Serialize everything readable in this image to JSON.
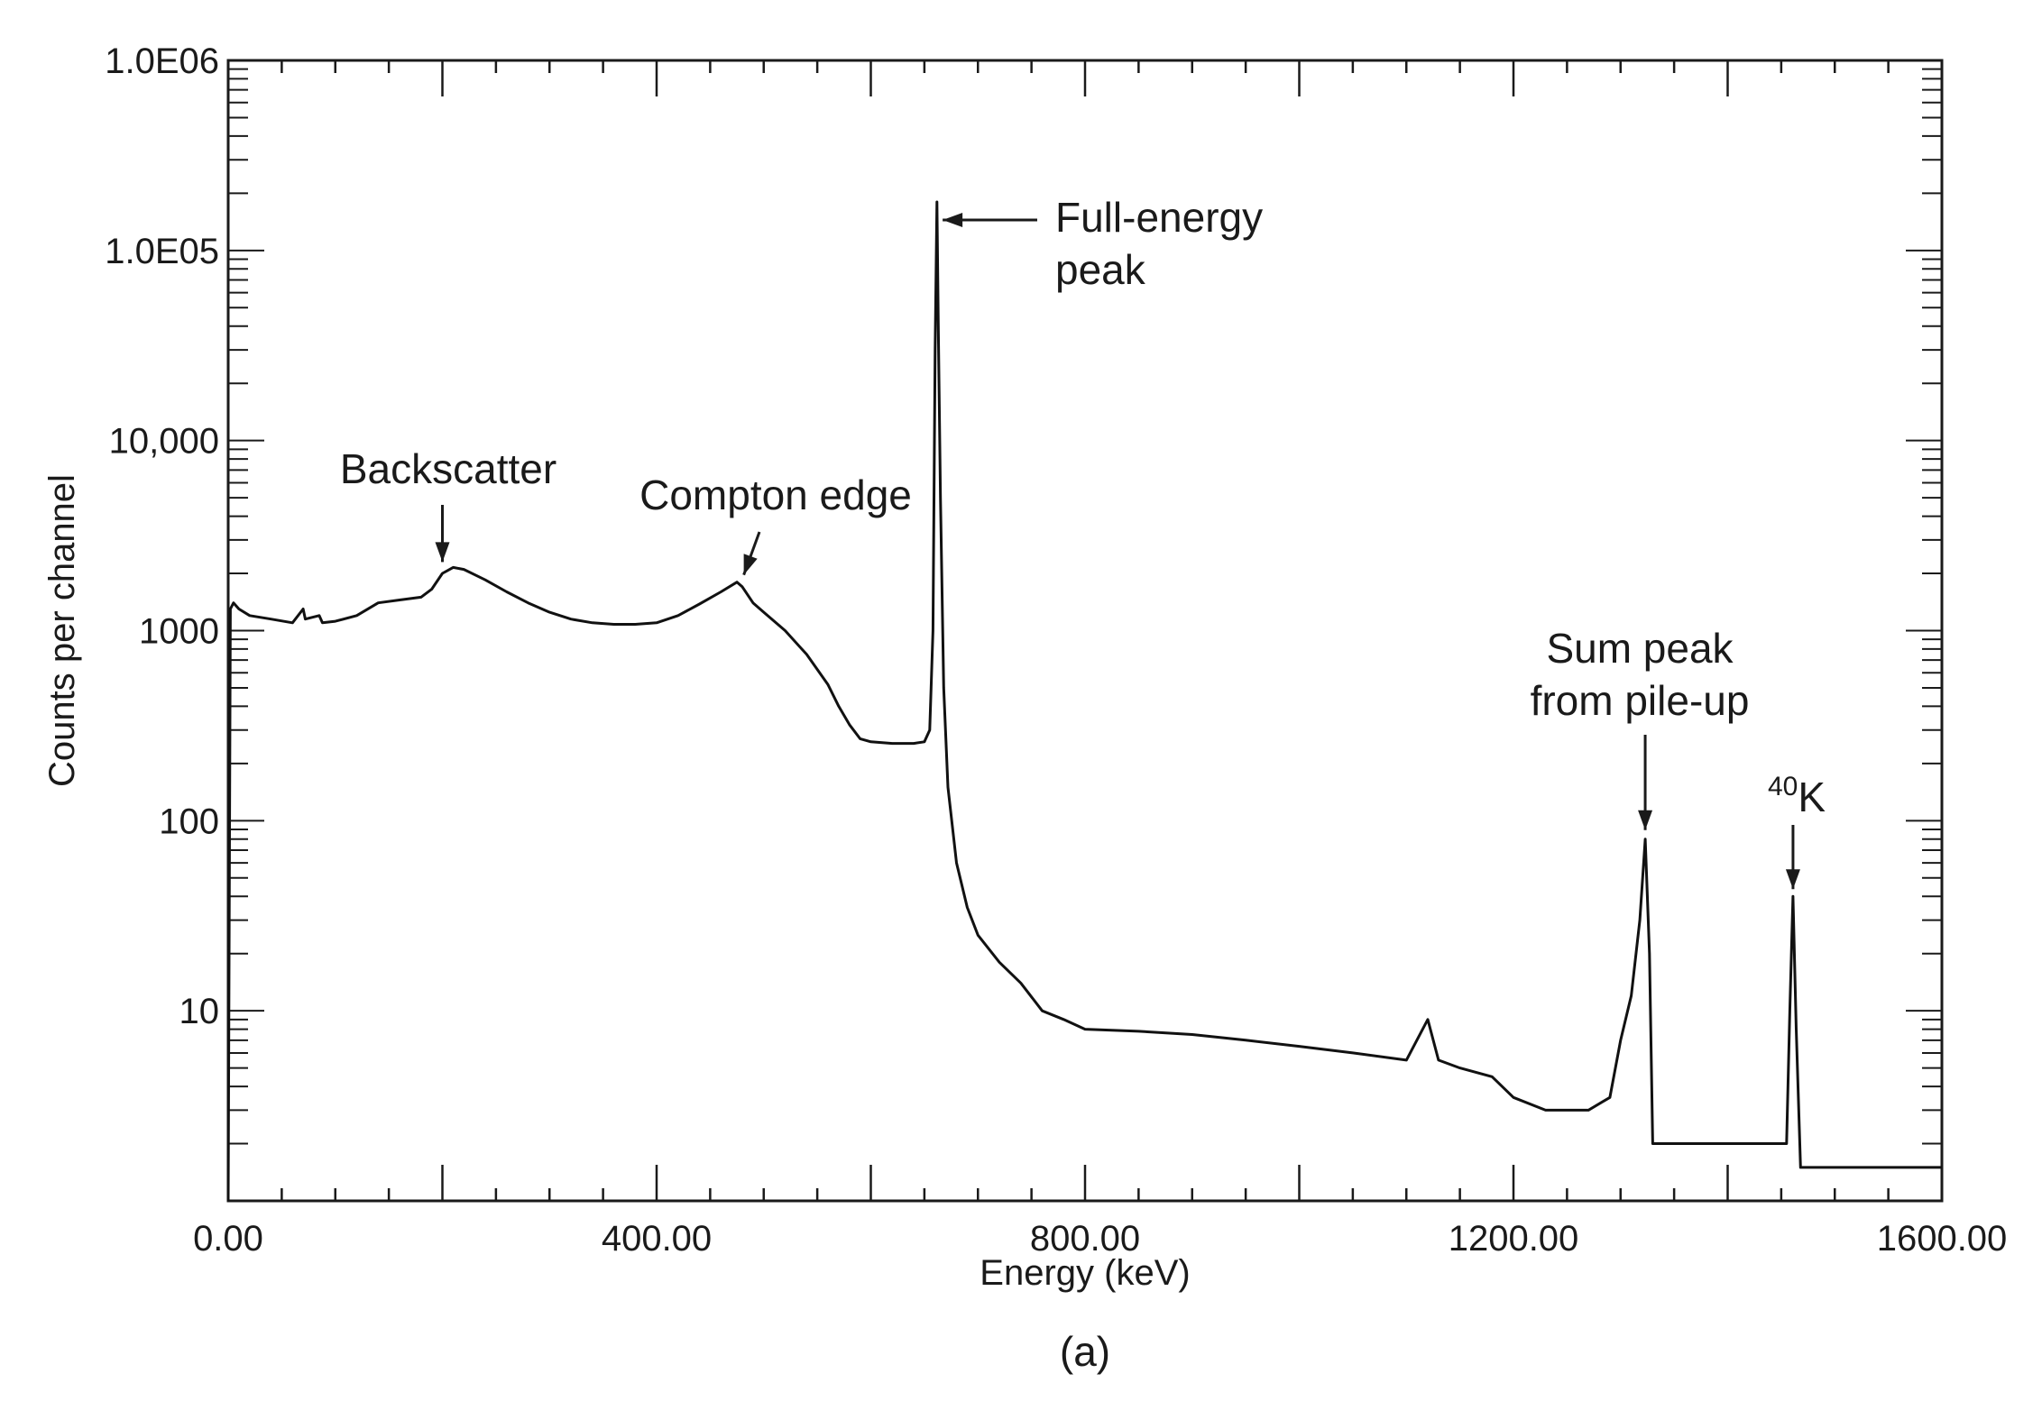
{
  "chart_data": {
    "type": "line",
    "title": "",
    "xlabel": "Energy (keV)",
    "ylabel": "Counts per channel",
    "caption": "(a)",
    "xlim": [
      0,
      1600
    ],
    "ylim": [
      1,
      1000000
    ],
    "yscale": "log",
    "grid": false,
    "x_ticks": [
      {
        "value": 0,
        "label": "0.00"
      },
      {
        "value": 400,
        "label": "400.00"
      },
      {
        "value": 800,
        "label": "800.00"
      },
      {
        "value": 1200,
        "label": "1200.00"
      },
      {
        "value": 1600,
        "label": "1600.00"
      }
    ],
    "y_ticks": [
      {
        "value": 10,
        "label": "10"
      },
      {
        "value": 100,
        "label": "100"
      },
      {
        "value": 1000,
        "label": "1000"
      },
      {
        "value": 10000,
        "label": "10,000"
      },
      {
        "value": 100000,
        "label": "1.0E05"
      },
      {
        "value": 1000000,
        "label": "1.0E06"
      }
    ],
    "series": [
      {
        "color": "#111111",
        "points": [
          [
            0,
            1
          ],
          [
            2,
            1300
          ],
          [
            5,
            1400
          ],
          [
            10,
            1300
          ],
          [
            20,
            1200
          ],
          [
            40,
            1150
          ],
          [
            60,
            1100
          ],
          [
            70,
            1300
          ],
          [
            72,
            1150
          ],
          [
            85,
            1200
          ],
          [
            88,
            1100
          ],
          [
            100,
            1120
          ],
          [
            120,
            1200
          ],
          [
            140,
            1400
          ],
          [
            160,
            1450
          ],
          [
            180,
            1500
          ],
          [
            190,
            1650
          ],
          [
            200,
            2000
          ],
          [
            210,
            2150
          ],
          [
            220,
            2100
          ],
          [
            240,
            1850
          ],
          [
            260,
            1600
          ],
          [
            280,
            1400
          ],
          [
            300,
            1250
          ],
          [
            320,
            1150
          ],
          [
            340,
            1100
          ],
          [
            360,
            1080
          ],
          [
            380,
            1080
          ],
          [
            400,
            1100
          ],
          [
            420,
            1200
          ],
          [
            440,
            1380
          ],
          [
            460,
            1600
          ],
          [
            475,
            1800
          ],
          [
            480,
            1700
          ],
          [
            490,
            1400
          ],
          [
            500,
            1250
          ],
          [
            520,
            1000
          ],
          [
            540,
            750
          ],
          [
            560,
            520
          ],
          [
            570,
            400
          ],
          [
            580,
            320
          ],
          [
            590,
            270
          ],
          [
            600,
            260
          ],
          [
            620,
            255
          ],
          [
            640,
            255
          ],
          [
            650,
            260
          ],
          [
            655,
            300
          ],
          [
            658,
            1000
          ],
          [
            660,
            30000
          ],
          [
            661.7,
            180000
          ],
          [
            663,
            40000
          ],
          [
            665,
            5000
          ],
          [
            668,
            500
          ],
          [
            672,
            150
          ],
          [
            680,
            60
          ],
          [
            690,
            35
          ],
          [
            700,
            25
          ],
          [
            720,
            18
          ],
          [
            740,
            14
          ],
          [
            760,
            10
          ],
          [
            780,
            9
          ],
          [
            800,
            8
          ],
          [
            850,
            7.8
          ],
          [
            900,
            7.5
          ],
          [
            950,
            7
          ],
          [
            1000,
            6.5
          ],
          [
            1050,
            6
          ],
          [
            1100,
            5.5
          ],
          [
            1120,
            9
          ],
          [
            1130,
            5.5
          ],
          [
            1150,
            5
          ],
          [
            1180,
            4.5
          ],
          [
            1200,
            3.5
          ],
          [
            1230,
            3
          ],
          [
            1270,
            3
          ],
          [
            1290,
            3.5
          ],
          [
            1300,
            7
          ],
          [
            1310,
            12
          ],
          [
            1318,
            30
          ],
          [
            1323,
            80
          ],
          [
            1327,
            20
          ],
          [
            1330,
            2
          ],
          [
            1360,
            2
          ],
          [
            1400,
            2
          ],
          [
            1440,
            2
          ],
          [
            1455,
            2
          ],
          [
            1458,
            10
          ],
          [
            1461,
            40
          ],
          [
            1464,
            8
          ],
          [
            1468,
            1.5
          ],
          [
            1500,
            1.5
          ],
          [
            1550,
            1.5
          ],
          [
            1600,
            1.5
          ]
        ]
      }
    ],
    "annotations": [
      {
        "lines": [
          "Backscatter"
        ],
        "x": 200,
        "y": 2150
      },
      {
        "lines": [
          "Compton edge"
        ],
        "x": 478,
        "y": 1800
      },
      {
        "lines": [
          "Full-energy",
          "peak"
        ],
        "x": 662,
        "y": 180000
      },
      {
        "lines": [
          "Sum peak",
          "from pile-up"
        ],
        "x": 1323,
        "y": 80
      },
      {
        "lines": [
          "K"
        ],
        "superscript": "40",
        "x": 1461,
        "y": 40
      }
    ]
  }
}
